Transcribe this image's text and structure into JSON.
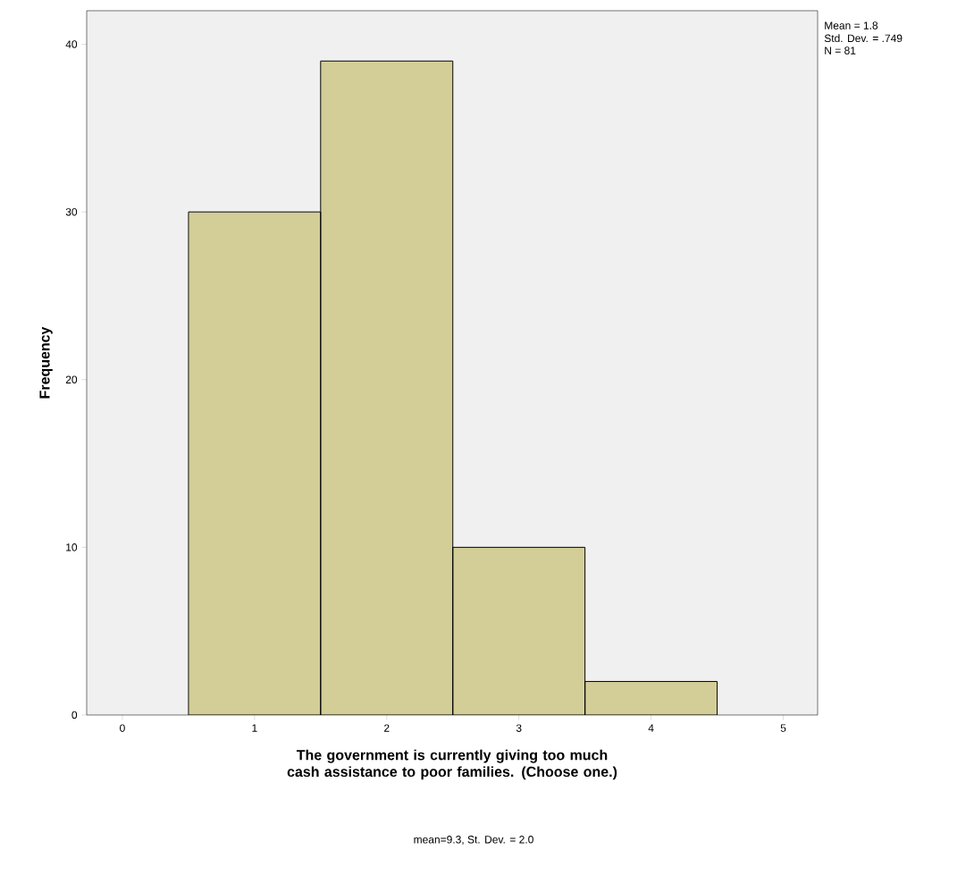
{
  "chart_data": {
    "type": "histogram",
    "xlabel": "The government is currently giving too much cash assistance to poor families. (Choose one.)",
    "ylabel": "Frequency",
    "bins": [
      0.5,
      1.5,
      2.5,
      3.5,
      4.5
    ],
    "values": [
      30,
      39,
      10,
      2
    ],
    "color": "#d3ce98",
    "xlim": [
      -0.27,
      5.26
    ],
    "ylim": [
      0,
      42
    ],
    "xticks": [
      0,
      1,
      2,
      3,
      4,
      5
    ],
    "yticks": [
      0,
      10,
      20,
      30,
      40
    ],
    "grid": false,
    "annotations": [
      "Mean = 1.8",
      "Std. Dev. = .749",
      "N = 81",
      "mean=9.3, St. Dev. = 2.0"
    ]
  }
}
